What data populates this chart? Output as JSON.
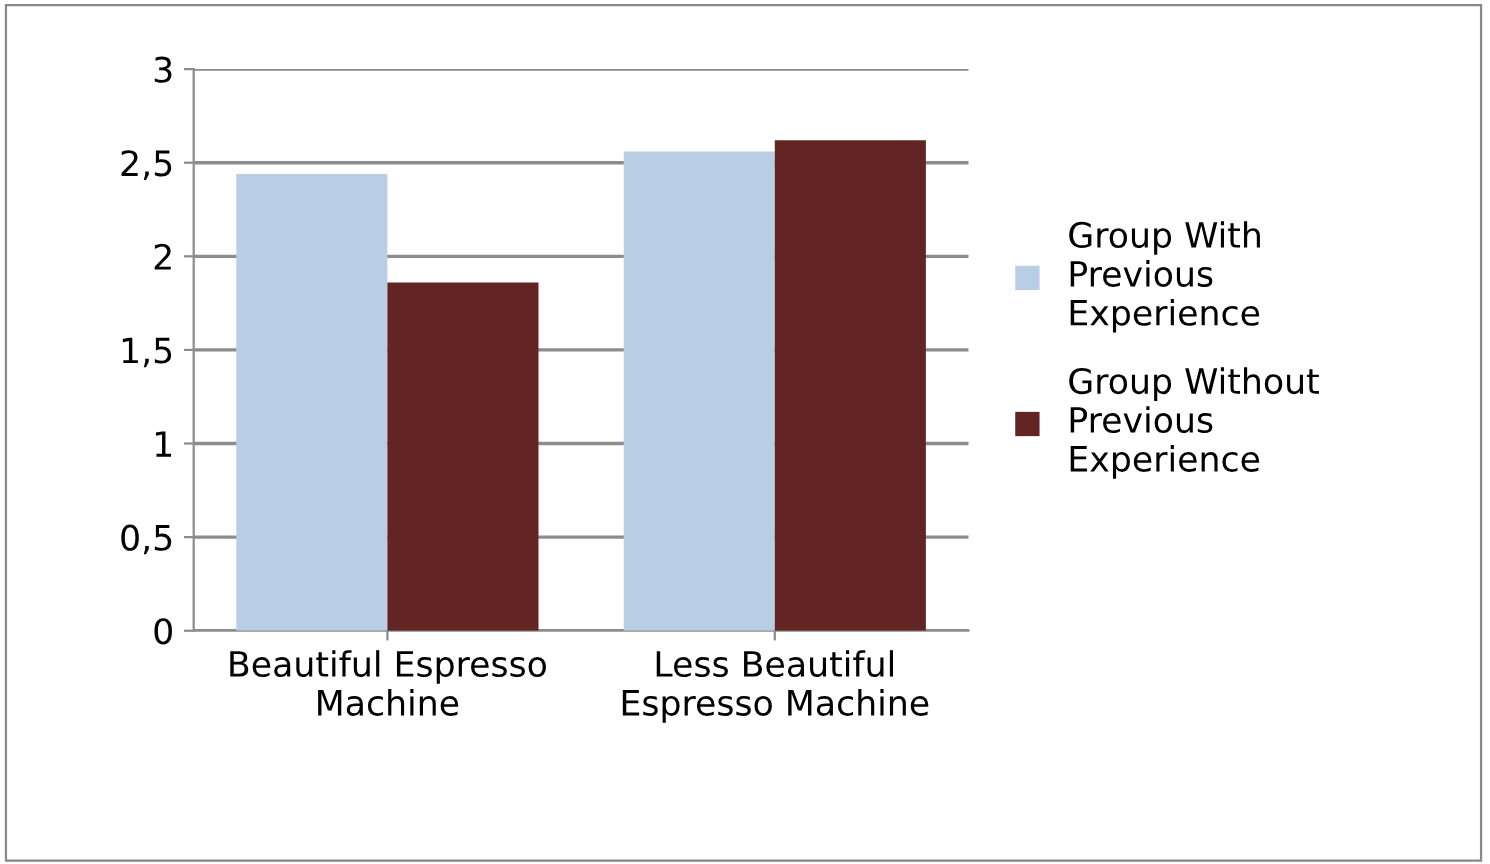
{
  "chart_data": {
    "type": "bar",
    "categories": [
      "Beautiful Espresso\nMachine",
      "Less Beautiful\nEspresso Machine"
    ],
    "series": [
      {
        "name": "Group With\nPrevious\nExperience",
        "color": "#b9cde5",
        "values": [
          2.44,
          2.56
        ]
      },
      {
        "name": "Group Without\nPrevious\nExperience",
        "color": "#632523",
        "values": [
          1.86,
          2.62
        ]
      }
    ],
    "ylim": [
      0,
      3
    ],
    "yticks": [
      0,
      {
        "value": 0.5,
        "label": "0,5"
      },
      1,
      {
        "value": 1.5,
        "label": "1,5"
      },
      2,
      {
        "value": 2.5,
        "label": "2,5"
      },
      3
    ],
    "grid": "y",
    "legend": "right"
  }
}
